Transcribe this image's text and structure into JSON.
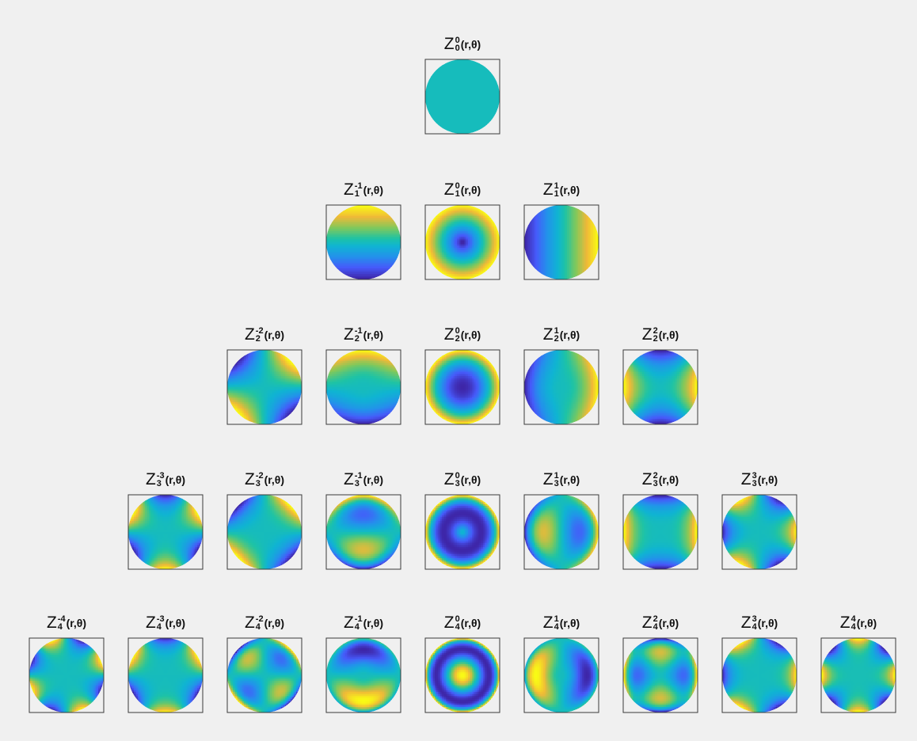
{
  "symbol": "Z",
  "args": "(r,θ)",
  "rows": [
    {
      "n": "0",
      "m": [
        "0"
      ]
    },
    {
      "n": "1",
      "m": [
        "-1",
        "0",
        "1"
      ]
    },
    {
      "n": "2",
      "m": [
        "-2",
        "-1",
        "0",
        "1",
        "2"
      ]
    },
    {
      "n": "3",
      "m": [
        "-3",
        "-2",
        "-1",
        "0",
        "1",
        "2",
        "3"
      ]
    },
    {
      "n": "4",
      "m": [
        "-4",
        "-3",
        "-2",
        "-1",
        "0",
        "1",
        "2",
        "3",
        "4"
      ]
    }
  ]
}
